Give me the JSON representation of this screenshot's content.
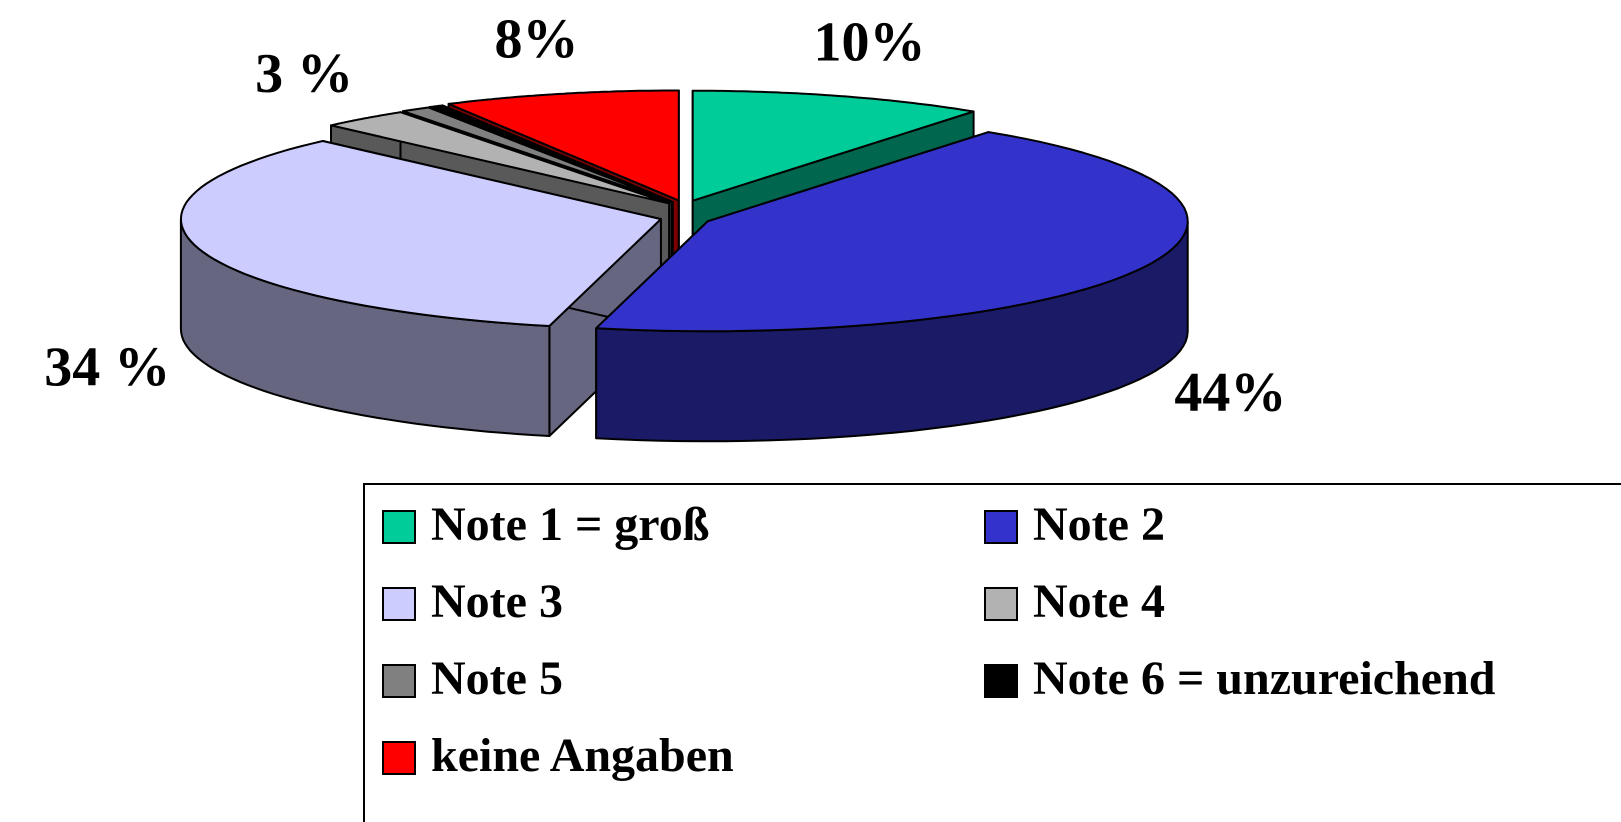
{
  "chart_data": {
    "type": "pie3d",
    "categories": [
      "Note 1 = groß",
      "Note 2",
      "Note 3",
      "Note 4",
      "Note 5",
      "Note 6 = unzureichend",
      "keine Angaben"
    ],
    "values": [
      10,
      44,
      34,
      3,
      1,
      0.5,
      8
    ],
    "value_labels": [
      "10%",
      "44%",
      "34 %",
      "3 %",
      null,
      null,
      "8%"
    ],
    "colors": [
      "#00cc99",
      "#3333cc",
      "#ccccff",
      "#b2b2b2",
      "#808080",
      "#000000",
      "#ff0000"
    ],
    "legend": "bottom"
  }
}
